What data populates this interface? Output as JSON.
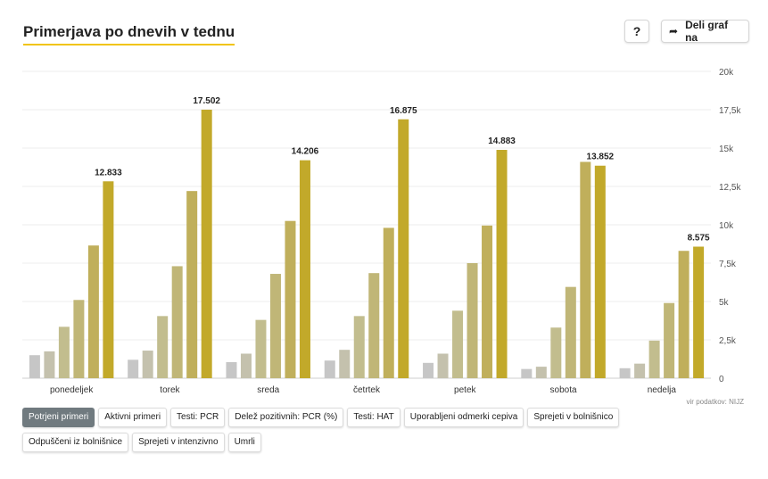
{
  "header": {
    "title": "Primerjava po dnevih v tednu",
    "help_label": "?",
    "share_label": "Deli graf na",
    "share_icon": "share-arrow-icon"
  },
  "source_note": "vir podatkov: NIJZ",
  "tabs": [
    {
      "label": "Potrjeni primeri",
      "active": true
    },
    {
      "label": "Aktivni primeri",
      "active": false
    },
    {
      "label": "Testi: PCR",
      "active": false
    },
    {
      "label": "Delež pozitivnih: PCR (%)",
      "active": false
    },
    {
      "label": "Testi: HAT",
      "active": false
    },
    {
      "label": "Uporabljeni odmerki cepiva",
      "active": false
    },
    {
      "label": "Sprejeti v bolnišnico",
      "active": false
    },
    {
      "label": "Odpuščeni iz bolnišnice",
      "active": false
    },
    {
      "label": "Sprejeti v intenzivno",
      "active": false
    },
    {
      "label": "Umrli",
      "active": false
    }
  ],
  "chart_data": {
    "type": "bar",
    "categories": [
      "ponedeljek",
      "torek",
      "sreda",
      "četrtek",
      "petek",
      "sobota",
      "nedelja"
    ],
    "series": [
      {
        "color": "#c6c6c6",
        "values": [
          1500,
          1200,
          1050,
          1150,
          1000,
          600,
          650
        ]
      },
      {
        "color": "#c4c1ad",
        "values": [
          1750,
          1800,
          1600,
          1850,
          1600,
          750,
          950
        ]
      },
      {
        "color": "#c2bd8e",
        "values": [
          3350,
          4050,
          3800,
          4050,
          4400,
          3300,
          2450
        ]
      },
      {
        "color": "#c0b677",
        "values": [
          5100,
          7300,
          6800,
          6850,
          7500,
          5950,
          4900
        ]
      },
      {
        "color": "#c0af5b",
        "values": [
          8650,
          12200,
          10250,
          9800,
          9950,
          14100,
          8300
        ]
      },
      {
        "color": "#c2a92a",
        "values": [
          12833,
          17502,
          14206,
          16875,
          14883,
          13852,
          8575
        ]
      }
    ],
    "value_labels": [
      "12.833",
      "17.502",
      "14.206",
      "16.875",
      "14.883",
      "13.852",
      "8.575"
    ],
    "y_ticks": [
      {
        "value": 0,
        "label": "0"
      },
      {
        "value": 2500,
        "label": "2,5k"
      },
      {
        "value": 5000,
        "label": "5k"
      },
      {
        "value": 7500,
        "label": "7,5k"
      },
      {
        "value": 10000,
        "label": "10k"
      },
      {
        "value": 12500,
        "label": "12,5k"
      },
      {
        "value": 15000,
        "label": "15k"
      },
      {
        "value": 17500,
        "label": "17,5k"
      },
      {
        "value": 20000,
        "label": "20k"
      }
    ],
    "ylim": [
      0,
      20000
    ],
    "y_axis_side": "right",
    "grid": true
  }
}
